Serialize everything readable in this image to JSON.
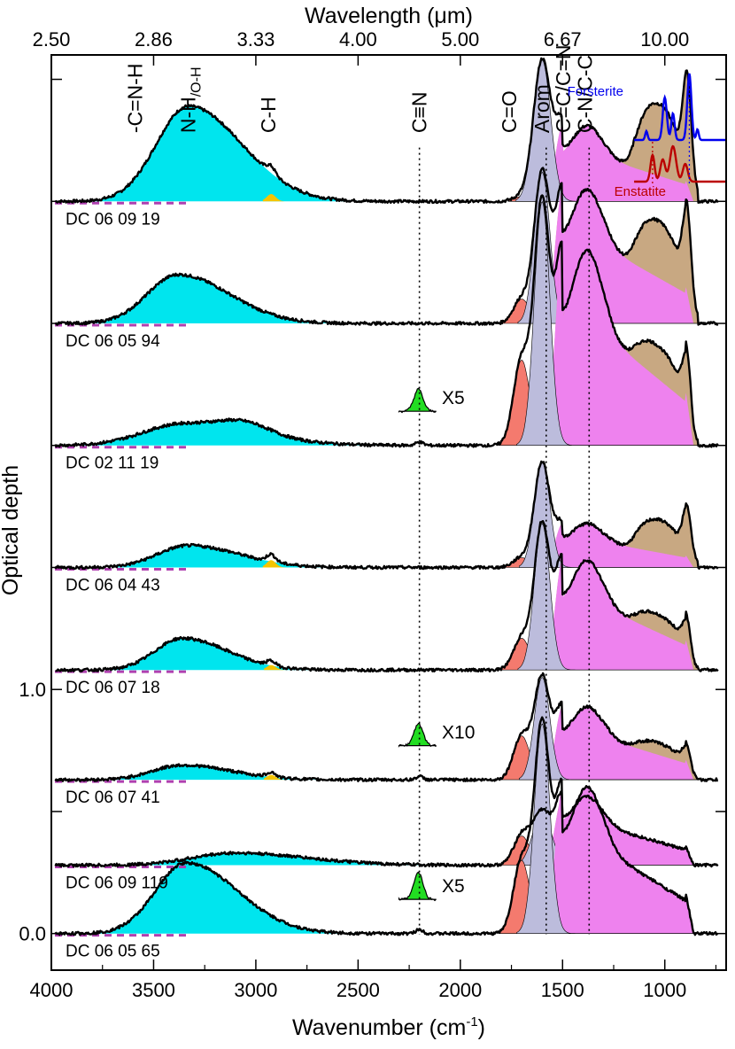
{
  "chart_data": {
    "type": "line",
    "title": "",
    "xlabel_bottom": "Wavenumber (cm",
    "xlabel_bottom_sup": "-1",
    "xlabel_bottom_end": ")",
    "xlabel_top_pre": "Wavelength (",
    "xlabel_top_mu": "μ",
    "xlabel_top_post": "m)",
    "ylabel": "Optical depth",
    "xlim": [
      4000,
      700
    ],
    "ylim": [
      -0.15,
      3.6
    ],
    "bottom_ticks": [
      {
        "v": 4000,
        "label": "4000"
      },
      {
        "v": 3500,
        "label": "3500"
      },
      {
        "v": 3000,
        "label": "3000"
      },
      {
        "v": 2500,
        "label": "2500"
      },
      {
        "v": 2000,
        "label": "2000"
      },
      {
        "v": 1500,
        "label": "1500"
      },
      {
        "v": 1000,
        "label": "1000"
      }
    ],
    "top_ticks": [
      {
        "v": 4000,
        "label": "2.50"
      },
      {
        "v": 3500,
        "label": "2.86"
      },
      {
        "v": 3000,
        "label": "3.33"
      },
      {
        "v": 2500,
        "label": "4.00"
      },
      {
        "v": 2000,
        "label": "5.00"
      },
      {
        "v": 1500,
        "label": "6.67"
      },
      {
        "v": 1000,
        "label": "10.00"
      }
    ],
    "y_ticks": [
      {
        "v": 0.0,
        "label": "0.0"
      },
      {
        "v": 0.5,
        "label": ""
      },
      {
        "v": 1.0,
        "label": "1.0"
      },
      {
        "v": 1.5,
        "label": ""
      },
      {
        "v": 2.0,
        "label": ""
      },
      {
        "v": 2.5,
        "label": ""
      },
      {
        "v": 3.0,
        "label": ""
      },
      {
        "v": 3.5,
        "label": ""
      }
    ],
    "band_labels": [
      {
        "x": 3590,
        "text": "-C=N-H"
      },
      {
        "x": 3330,
        "text": "N-H",
        "sub": "/O-H"
      },
      {
        "x": 2940,
        "text": "C-H"
      },
      {
        "x": 2200,
        "text": "C≡N"
      },
      {
        "x": 1760,
        "text": "C=O"
      },
      {
        "x": 1600,
        "text": "Arom.",
        "text2": "C=C/C=N"
      },
      {
        "x": 1390,
        "text": "C-N/C-C"
      }
    ],
    "vlines": [
      2200,
      1580,
      1370
    ],
    "colors": {
      "oh": "#00e5ee",
      "ch": "#f4c400",
      "cn": "#22dd22",
      "co": "#f47a6e",
      "arom": "#bcbcdc",
      "cnc": "#ee82ee",
      "silicate": "#c8a882",
      "forsterite": "#0000ee",
      "enstatite": "#bb0000",
      "baseline": "#b040b0"
    },
    "inset": {
      "forsterite_label": "Forsterite",
      "enstatite_label": "Enstatite"
    },
    "series": [
      {
        "name": "DC 06 09 19",
        "offset": 3.0,
        "oh": 0.39,
        "ohc": 3330,
        "ohw": 260,
        "ohShoulder": 0.0,
        "ch": 0.03,
        "cnAmp": 0,
        "cnMult": "",
        "co": 0.02,
        "arom": 0.58,
        "aromw": 42,
        "cnc": 0.31,
        "sil": 0.62,
        "silAmp": 0.48
      },
      {
        "name": "DC 06 05 94",
        "offset": 2.5,
        "oh": 0.2,
        "ohc": 3380,
        "ohw": 250,
        "ohShoulder": 0.0,
        "ch": 0.0,
        "cnAmp": 0,
        "cnMult": "",
        "co": 0.1,
        "arom": 0.62,
        "aromw": 38,
        "cnc": 0.55,
        "sil": 0.38,
        "silAmp": 0.38
      },
      {
        "name": "DC 02 11 19",
        "offset": 2.0,
        "oh": 0.09,
        "ohc": 3350,
        "ohw": 330,
        "ohShoulder": 0.04,
        "ch": 0.0,
        "cnAmp": 0.09,
        "cnMult": "X5",
        "co": 0.35,
        "arom": 1.0,
        "aromw": 38,
        "cnc": 0.8,
        "sil": 0.22,
        "silAmp": 0.22
      },
      {
        "name": "DC 06 04 43",
        "offset": 1.5,
        "oh": 0.09,
        "ohc": 3330,
        "ohw": 250,
        "ohShoulder": 0.0,
        "ch": 0.03,
        "cnAmp": 0,
        "cnMult": "",
        "co": 0.04,
        "arom": 0.43,
        "aromw": 38,
        "cnc": 0.18,
        "sil": 0.22,
        "silAmp": 0.22
      },
      {
        "name": "DC 06 07 18",
        "offset": 1.08,
        "oh": 0.13,
        "ohc": 3360,
        "ohw": 220,
        "ohShoulder": 0.0,
        "ch": 0.02,
        "cnAmp": 0,
        "cnMult": "",
        "co": 0.13,
        "arom": 0.6,
        "aromw": 38,
        "cnc": 0.45,
        "sil": 0.12,
        "silAmp": 0.12
      },
      {
        "name": "DC 06 07 41",
        "offset": 0.63,
        "oh": 0.06,
        "ohc": 3360,
        "ohw": 240,
        "ohShoulder": 0.0,
        "ch": 0.02,
        "cnAmp": 0.09,
        "cnMult": "X10",
        "co": 0.18,
        "arom": 0.42,
        "aromw": 38,
        "cnc": 0.3,
        "sil": 0.08,
        "silAmp": 0.08
      },
      {
        "name": "DC 06 09 119",
        "offset": 0.28,
        "oh": 0.05,
        "ohc": 3100,
        "ohw": 350,
        "ohShoulder": 0.0,
        "ch": 0.0,
        "cnAmp": 0,
        "cnMult": "",
        "co": 0.12,
        "arom": 0.22,
        "aromw": 45,
        "cnc": 0.28,
        "sil": 0.0,
        "silAmp": 0.0
      },
      {
        "name": "DC 06 05 65",
        "offset": 0.0,
        "oh": 0.29,
        "ohc": 3340,
        "ohw": 250,
        "ohShoulder": 0.0,
        "ch": 0.0,
        "cnAmp": 0.11,
        "cnMult": "X5",
        "co": 0.3,
        "arom": 0.86,
        "aromw": 38,
        "cnc": 0.6,
        "sil": 0.0,
        "silAmp": 0.0
      }
    ]
  }
}
